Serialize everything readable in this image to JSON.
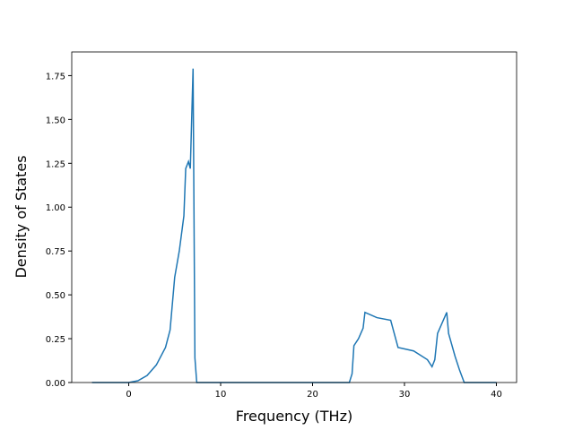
{
  "chart_data": {
    "type": "line",
    "x_label": "Frequency (THz)",
    "y_label": "Density of States",
    "series": [
      {
        "color": "#1f77b4",
        "x": [
          -4,
          0,
          1,
          2,
          3,
          4,
          4.5,
          5,
          5.5,
          6,
          6.2,
          6.5,
          6.7,
          7,
          7.2,
          7.4,
          10,
          20,
          24,
          24.3,
          24.5,
          25,
          25.5,
          25.7,
          27,
          28.5,
          29.3,
          31,
          32.5,
          33,
          33.3,
          33.6,
          34.6,
          34.8,
          35.5,
          36,
          36.5,
          40
        ],
        "values": [
          0,
          0,
          0.01,
          0.04,
          0.1,
          0.2,
          0.3,
          0.6,
          0.75,
          0.95,
          1.22,
          1.26,
          1.22,
          1.79,
          0.14,
          0,
          0,
          0,
          0,
          0.05,
          0.21,
          0.25,
          0.31,
          0.4,
          0.37,
          0.355,
          0.2,
          0.18,
          0.13,
          0.09,
          0.13,
          0.28,
          0.4,
          0.28,
          0.15,
          0.07,
          0,
          0
        ]
      }
    ],
    "xlim": [
      -6.2,
      42.2
    ],
    "xticks": [
      0,
      10,
      20,
      30,
      40
    ],
    "ylim": [
      0,
      1.885
    ],
    "yticks": [
      {
        "value": 0,
        "label": "0.00"
      },
      {
        "value": 0.25,
        "label": "0.25"
      },
      {
        "value": 0.5,
        "label": "0.50"
      },
      {
        "value": 0.75,
        "label": "0.75"
      },
      {
        "value": 1,
        "label": "1.00"
      },
      {
        "value": 1.25,
        "label": "1.25"
      },
      {
        "value": 1.5,
        "label": "1.50"
      },
      {
        "value": 1.75,
        "label": "1.75"
      }
    ]
  }
}
